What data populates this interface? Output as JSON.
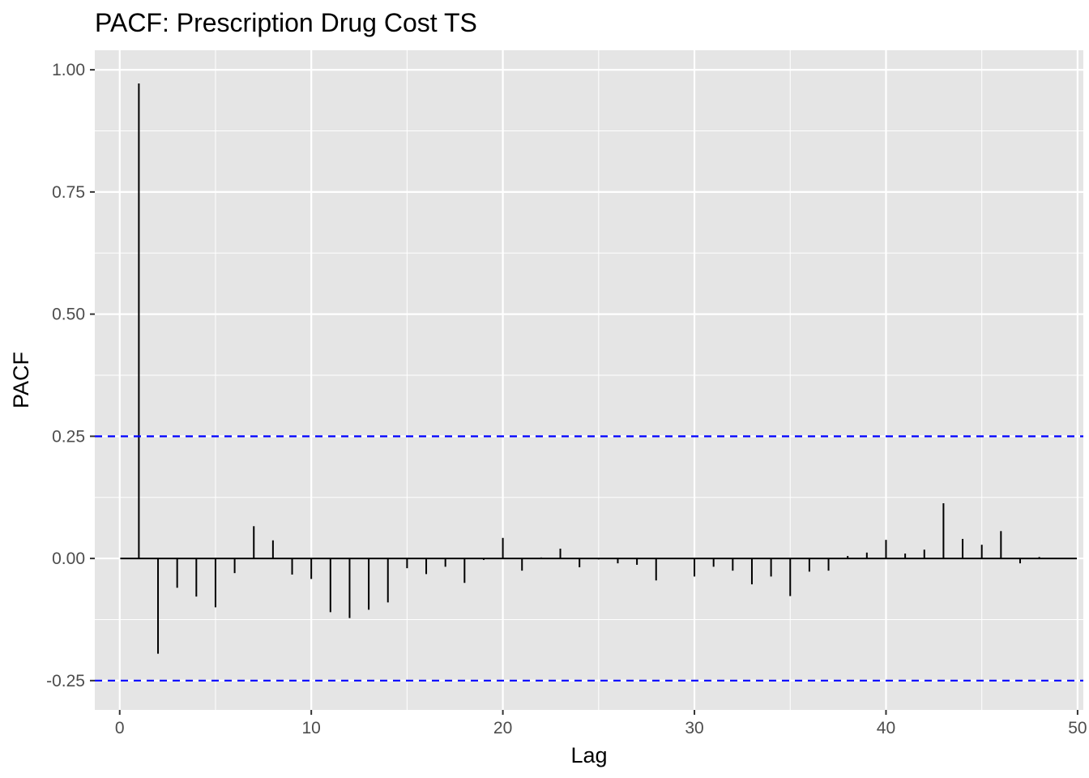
{
  "chart_data": {
    "type": "bar",
    "title": "PACF: Prescription Drug Cost TS",
    "xlabel": "Lag",
    "ylabel": "PACF",
    "xlim": [
      -1.3,
      50.3
    ],
    "ylim": [
      -0.31,
      1.04
    ],
    "x_ticks": [
      0,
      10,
      20,
      30,
      40,
      50
    ],
    "x_tick_labels": [
      "0",
      "10",
      "20",
      "30",
      "40",
      "50"
    ],
    "y_ticks": [
      -0.25,
      0,
      0.25,
      0.5,
      0.75,
      1.0
    ],
    "y_tick_labels": [
      "-0.25",
      "0.00",
      "0.25",
      "0.50",
      "0.75",
      "1.00"
    ],
    "confidence_bounds": [
      0.25,
      -0.25
    ],
    "grid": true,
    "lags": [
      1,
      2,
      3,
      4,
      5,
      6,
      7,
      8,
      9,
      10,
      11,
      12,
      13,
      14,
      15,
      16,
      17,
      18,
      19,
      20,
      21,
      22,
      23,
      24,
      25,
      26,
      27,
      28,
      29,
      30,
      31,
      32,
      33,
      34,
      35,
      36,
      37,
      38,
      39,
      40,
      41,
      42,
      43,
      44,
      45,
      46,
      47,
      48
    ],
    "values": [
      0.972,
      -0.195,
      -0.06,
      -0.078,
      -0.1,
      -0.03,
      0.066,
      0.037,
      -0.033,
      -0.042,
      -0.11,
      -0.122,
      -0.105,
      -0.09,
      -0.02,
      -0.032,
      -0.017,
      -0.05,
      -0.003,
      0.042,
      -0.025,
      0.002,
      0.02,
      -0.018,
      -0.002,
      -0.01,
      -0.013,
      -0.045,
      0.001,
      -0.037,
      -0.017,
      -0.025,
      -0.053,
      -0.037,
      -0.077,
      -0.027,
      -0.025,
      0.005,
      0.012,
      0.038,
      0.01,
      0.018,
      0.113,
      0.04,
      0.028,
      0.056,
      -0.01,
      0.003
    ],
    "colors": {
      "panel_bg": "#e5e5e5",
      "grid_major": "#ffffff",
      "bars": "#000000",
      "confidence_line": "#0000ff"
    }
  }
}
